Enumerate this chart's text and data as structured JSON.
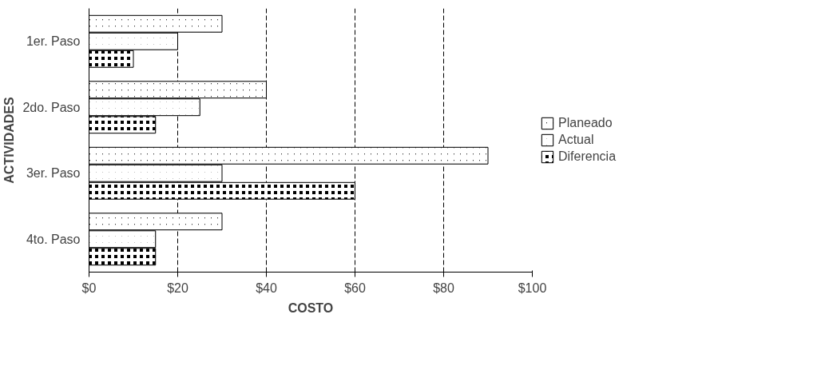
{
  "chart_data": {
    "type": "bar",
    "orientation": "horizontal",
    "xlabel": "COSTO",
    "ylabel": "ACTIVIDADES",
    "categories": [
      "1er. Paso",
      "2do. Paso",
      "3er. Paso",
      "4to. Paso"
    ],
    "series": [
      {
        "name": "Planeado",
        "color": "#000000",
        "values": [
          30,
          40,
          90,
          30
        ]
      },
      {
        "name": "Actual",
        "color": "#000000",
        "values": [
          20,
          25,
          30,
          15
        ]
      },
      {
        "name": "Diferencia",
        "color": "#000000",
        "values": [
          10,
          15,
          60,
          15
        ]
      }
    ],
    "xlim": [
      0,
      100
    ],
    "xticks": [
      {
        "value": 0,
        "label": "$0"
      },
      {
        "value": 20,
        "label": "$20"
      },
      {
        "value": 40,
        "label": "$40"
      },
      {
        "value": 60,
        "label": "$60"
      },
      {
        "value": 80,
        "label": "$80"
      },
      {
        "value": 100,
        "label": "$100"
      }
    ],
    "grid": "x",
    "legend": "right"
  }
}
